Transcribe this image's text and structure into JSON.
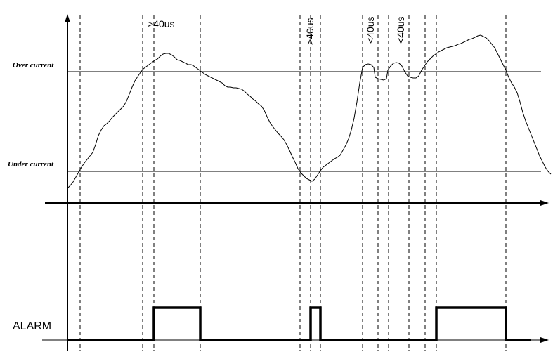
{
  "labels": {
    "over_current": "Over current",
    "under_current": "Under current",
    "alarm": "ALARM"
  },
  "annotations": {
    "a1": ">40us",
    "a2": ">40us",
    "a3": "<40us",
    "a4": "<40us"
  },
  "colors": {
    "line": "#000000",
    "background": "#ffffff"
  }
}
